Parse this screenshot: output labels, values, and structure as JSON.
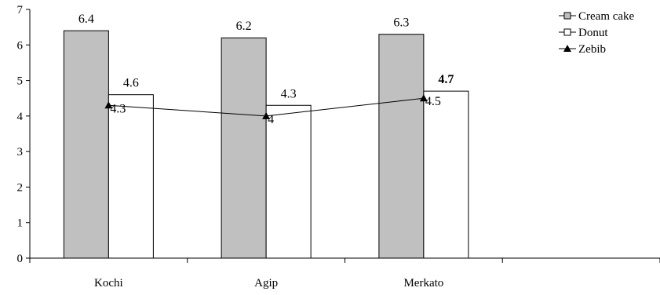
{
  "chart_data": {
    "type": "bar",
    "categories": [
      "Kochi",
      "Agip",
      "Merkato"
    ],
    "extra_category_slots": 1,
    "ylim": [
      0,
      7
    ],
    "yticks": [
      0,
      1,
      2,
      3,
      4,
      5,
      6,
      7
    ],
    "grid": false,
    "legend": "top-right",
    "series": [
      {
        "name": "Cream cake",
        "kind": "bar",
        "fill": "#c0c0c0",
        "marker": "square",
        "values": [
          6.4,
          6.2,
          6.3
        ],
        "labels": [
          "6.4",
          "6.2",
          "6.3"
        ]
      },
      {
        "name": "Donut",
        "kind": "bar",
        "fill": "#ffffff",
        "marker": "square",
        "values": [
          4.6,
          4.3,
          4.7
        ],
        "labels": [
          "4.6",
          "4.3",
          "4.7"
        ]
      },
      {
        "name": "Zebib",
        "kind": "line",
        "marker": "triangle",
        "values": [
          4.3,
          4.0,
          4.5
        ],
        "labels": [
          "4.3",
          "4",
          "4.5"
        ]
      }
    ]
  }
}
